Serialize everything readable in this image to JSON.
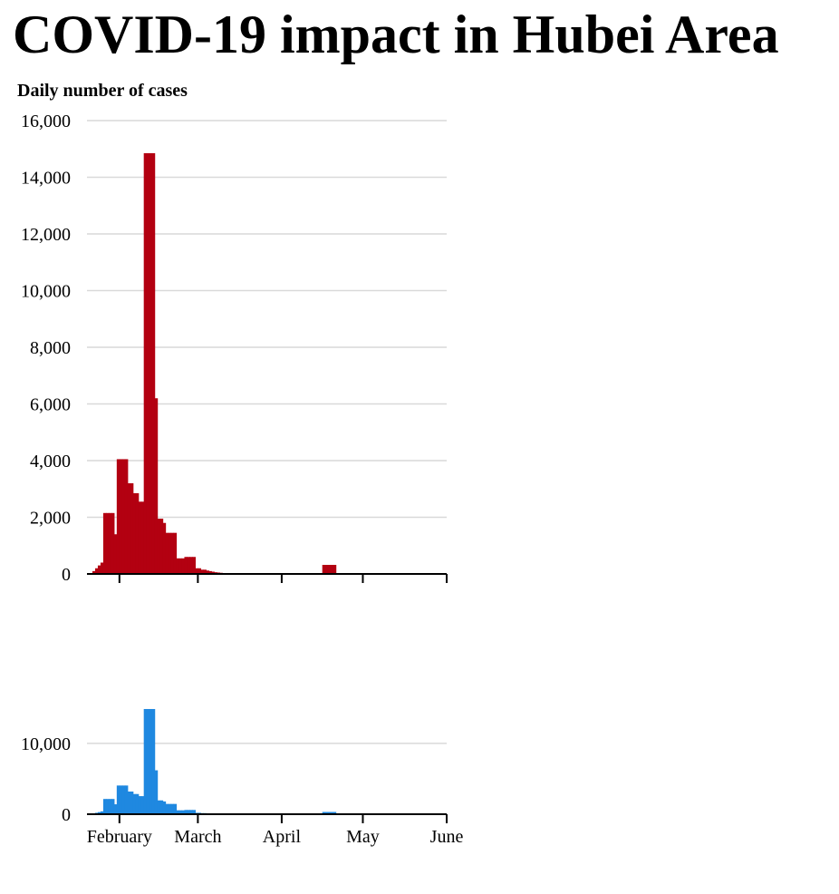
{
  "title": "COVID-19 impact in Hubei Area",
  "colors": {
    "cases": "#b30011",
    "overview": "#1f88e0",
    "grid": "#d9d9d9",
    "axis": "#000000"
  },
  "chart_data": [
    {
      "type": "bar",
      "name": "main",
      "ylabel": "Daily number of cases",
      "ylim": [
        0,
        16000
      ],
      "yticks": [
        "0",
        "2,000",
        "4,000",
        "6,000",
        "8,000",
        "10,000",
        "12,000",
        "14,000",
        "16,000"
      ],
      "ytick_values": [
        0,
        2000,
        4000,
        6000,
        8000,
        10000,
        12000,
        14000,
        16000
      ],
      "xlim": [
        "2020-01-20",
        "2020-06-01"
      ],
      "xticks": [
        "2020-02-01",
        "2020-03-01",
        "2020-04-01",
        "2020-05-01",
        "2020-06-01"
      ],
      "grid": true,
      "x": [
        "2020-01-22",
        "2020-01-23",
        "2020-01-24",
        "2020-01-25",
        "2020-01-26",
        "2020-01-27",
        "2020-01-28",
        "2020-01-29",
        "2020-01-30",
        "2020-01-31",
        "2020-02-01",
        "2020-02-02",
        "2020-02-03",
        "2020-02-04",
        "2020-02-05",
        "2020-02-06",
        "2020-02-07",
        "2020-02-08",
        "2020-02-09",
        "2020-02-10",
        "2020-02-11",
        "2020-02-12",
        "2020-02-13",
        "2020-02-14",
        "2020-02-15",
        "2020-02-16",
        "2020-02-17",
        "2020-02-18",
        "2020-02-19",
        "2020-02-20",
        "2020-02-21",
        "2020-02-22",
        "2020-02-23",
        "2020-02-24",
        "2020-02-25",
        "2020-02-26",
        "2020-02-27",
        "2020-02-28",
        "2020-02-29",
        "2020-03-01",
        "2020-03-02",
        "2020-03-03",
        "2020-03-04",
        "2020-03-05",
        "2020-03-06",
        "2020-03-07",
        "2020-03-08",
        "2020-03-09",
        "2020-03-10",
        "2020-03-11",
        "2020-03-12",
        "2020-04-16",
        "2020-04-17",
        "2020-04-18",
        "2020-04-19",
        "2020-04-20",
        "2020-04-26",
        "2020-04-27",
        "2020-04-28",
        "2020-04-29",
        "2020-04-30",
        "2020-05-01"
      ],
      "values": [
        100,
        200,
        300,
        400,
        2150,
        2150,
        2150,
        2150,
        1400,
        4050,
        4050,
        4050,
        4050,
        3200,
        3200,
        2850,
        2850,
        2550,
        2550,
        14850,
        14850,
        14850,
        14850,
        6200,
        1950,
        1950,
        1800,
        1450,
        1450,
        1450,
        1450,
        550,
        550,
        550,
        600,
        600,
        600,
        600,
        200,
        200,
        150,
        150,
        120,
        100,
        80,
        60,
        50,
        40,
        30,
        20,
        15,
        320,
        320,
        320,
        320,
        320,
        20,
        20,
        20,
        20,
        20,
        20
      ]
    },
    {
      "type": "bar",
      "name": "overview",
      "ylim": [
        0,
        16000
      ],
      "yticks": [
        "0",
        "10,000"
      ],
      "ytick_values": [
        0,
        10000
      ],
      "xlim": [
        "2020-01-20",
        "2020-06-01"
      ],
      "xticks": [
        "2020-02-01",
        "2020-03-01",
        "2020-04-01",
        "2020-05-01",
        "2020-06-01"
      ],
      "xtick_labels": [
        "February",
        "March",
        "April",
        "May",
        "June"
      ],
      "grid": true,
      "series_source": "main"
    }
  ]
}
